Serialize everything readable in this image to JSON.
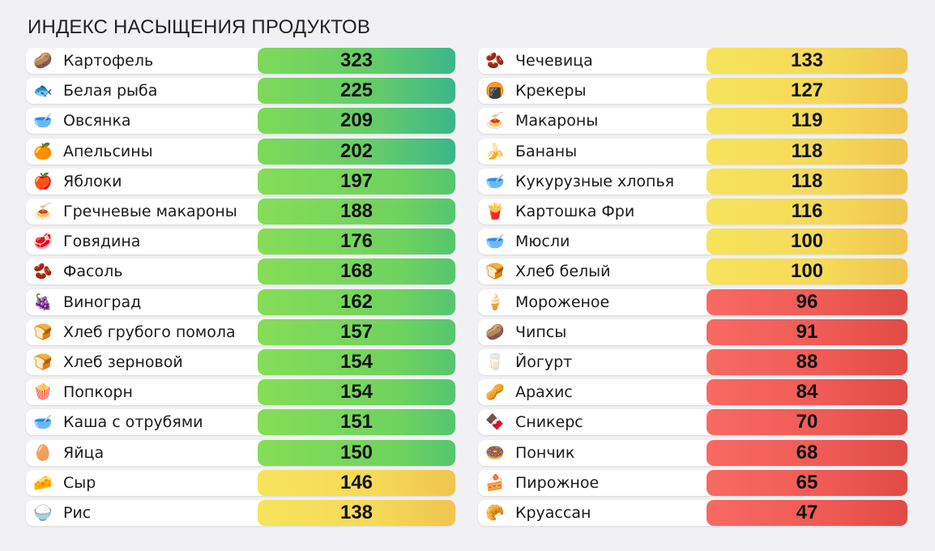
{
  "title": "ИНДЕКС НАСЫЩЕНИЯ ПРОДУКТОВ",
  "colors": {
    "high": "#5fcf63",
    "top": "#3bb68b",
    "medium": "#f5d957",
    "low": "#ef5a55"
  },
  "chart_data": {
    "type": "table",
    "title": "ИНДЕКС НАСЫЩЕНИЯ ПРОДУКТОВ",
    "columns": [
      {
        "items": [
          {
            "icon": "potato-icon",
            "glyph": "🥔",
            "name": "Картофель",
            "value": 323,
            "tier": "g-strong"
          },
          {
            "icon": "fish-icon",
            "glyph": "🐟",
            "name": "Белая рыба",
            "value": 225,
            "tier": "g-strong"
          },
          {
            "icon": "oatmeal-bowl-icon",
            "glyph": "🥣",
            "name": "Овсянка",
            "value": 209,
            "tier": "g-strong"
          },
          {
            "icon": "orange-icon",
            "glyph": "🍊",
            "name": "Апельсины",
            "value": 202,
            "tier": "g-strong"
          },
          {
            "icon": "apple-icon",
            "glyph": "🍎",
            "name": "Яблоки",
            "value": 197,
            "tier": "g-green"
          },
          {
            "icon": "pasta-icon",
            "glyph": "🍝",
            "name": "Гречневые макароны",
            "value": 188,
            "tier": "g-green"
          },
          {
            "icon": "steak-icon",
            "glyph": "🥩",
            "name": "Говядина",
            "value": 176,
            "tier": "g-green"
          },
          {
            "icon": "beans-icon",
            "glyph": "🫘",
            "name": "Фасоль",
            "value": 168,
            "tier": "g-green"
          },
          {
            "icon": "grapes-icon",
            "glyph": "🍇",
            "name": "Виноград",
            "value": 162,
            "tier": "g-green"
          },
          {
            "icon": "loaf-icon",
            "glyph": "🍞",
            "name": "Хлеб грубого помола",
            "value": 157,
            "tier": "g-green"
          },
          {
            "icon": "grain-bread-icon",
            "glyph": "🍞",
            "name": "Хлеб зерновой",
            "value": 154,
            "tier": "g-green"
          },
          {
            "icon": "popcorn-icon",
            "glyph": "🍿",
            "name": "Попкорн",
            "value": 154,
            "tier": "g-green"
          },
          {
            "icon": "porridge-icon",
            "glyph": "🥣",
            "name": "Каша с отрубями",
            "value": 151,
            "tier": "g-green"
          },
          {
            "icon": "egg-icon",
            "glyph": "🥚",
            "name": "Яйца",
            "value": 150,
            "tier": "g-green"
          },
          {
            "icon": "cheese-icon",
            "glyph": "🧀",
            "name": "Сыр",
            "value": 146,
            "tier": "g-yellow"
          },
          {
            "icon": "rice-icon",
            "glyph": "🍚",
            "name": "Рис",
            "value": 138,
            "tier": "g-yellow"
          }
        ]
      },
      {
        "items": [
          {
            "icon": "lentils-icon",
            "glyph": "🫘",
            "name": "Чечевица",
            "value": 133,
            "tier": "g-yellow"
          },
          {
            "icon": "crackers-icon",
            "glyph": "🍘",
            "name": "Крекеры",
            "value": 127,
            "tier": "g-yellow"
          },
          {
            "icon": "macaroni-icon",
            "glyph": "🍝",
            "name": "Макароны",
            "value": 119,
            "tier": "g-yellow"
          },
          {
            "icon": "banana-icon",
            "glyph": "🍌",
            "name": "Бананы",
            "value": 118,
            "tier": "g-yellow"
          },
          {
            "icon": "cornflakes-icon",
            "glyph": "🥣",
            "name": "Кукурузные хлопья",
            "value": 118,
            "tier": "g-yellow"
          },
          {
            "icon": "fries-icon",
            "glyph": "🍟",
            "name": "Картошка Фри",
            "value": 116,
            "tier": "g-yellow"
          },
          {
            "icon": "muesli-icon",
            "glyph": "🥣",
            "name": "Мюсли",
            "value": 100,
            "tier": "g-yellow"
          },
          {
            "icon": "white-bread-icon",
            "glyph": "🍞",
            "name": "Хлеб белый",
            "value": 100,
            "tier": "g-yellow"
          },
          {
            "icon": "ice-cream-icon",
            "glyph": "🍦",
            "name": "Мороженое",
            "value": 96,
            "tier": "g-red"
          },
          {
            "icon": "chips-icon",
            "glyph": "🥔",
            "name": "Чипсы",
            "value": 91,
            "tier": "g-red"
          },
          {
            "icon": "yogurt-icon",
            "glyph": "🥛",
            "name": "Йогурт",
            "value": 88,
            "tier": "g-red"
          },
          {
            "icon": "peanuts-icon",
            "glyph": "🥜",
            "name": "Арахис",
            "value": 84,
            "tier": "g-red"
          },
          {
            "icon": "candy-bar-icon",
            "glyph": "🍫",
            "name": "Сникерс",
            "value": 70,
            "tier": "g-red"
          },
          {
            "icon": "donut-icon",
            "glyph": "🍩",
            "name": "Пончик",
            "value": 68,
            "tier": "g-red"
          },
          {
            "icon": "cake-icon",
            "glyph": "🍰",
            "name": "Пирожное",
            "value": 65,
            "tier": "g-red"
          },
          {
            "icon": "croissant-icon",
            "glyph": "🥐",
            "name": "Круассан",
            "value": 47,
            "tier": "g-red"
          }
        ]
      }
    ]
  }
}
